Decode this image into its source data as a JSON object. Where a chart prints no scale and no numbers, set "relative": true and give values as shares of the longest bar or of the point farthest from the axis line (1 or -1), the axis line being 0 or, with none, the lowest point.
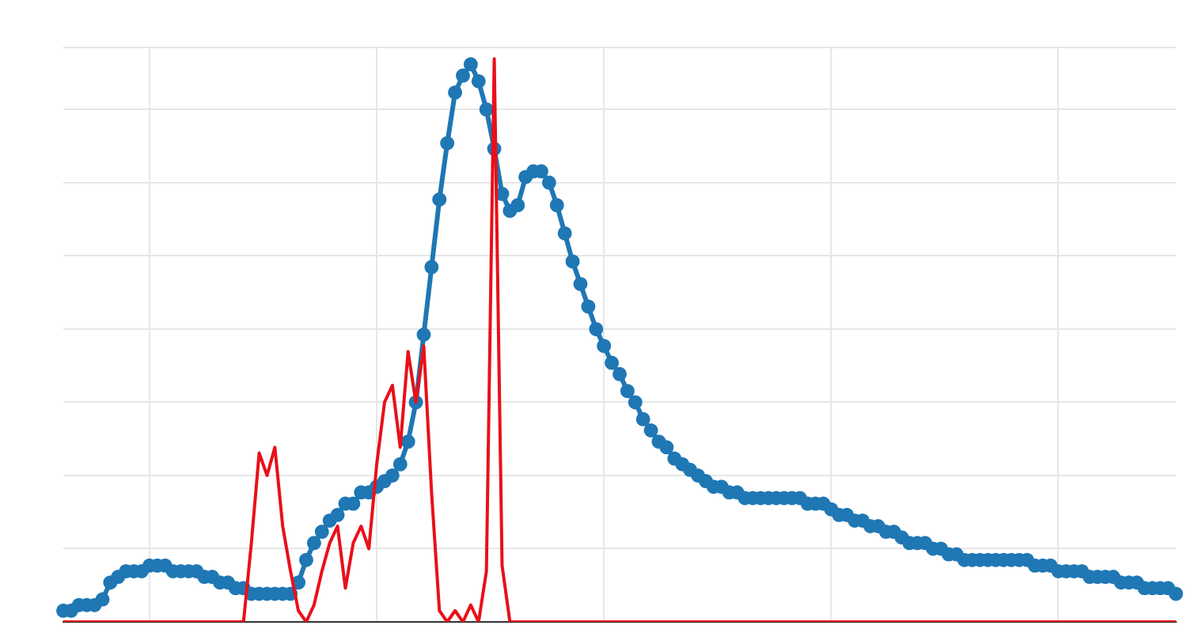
{
  "chart_data": {
    "type": "line",
    "relative": true,
    "grid": true,
    "categories": [
      null,
      null,
      null,
      null,
      null,
      null,
      null,
      null,
      null,
      null,
      null,
      null,
      null,
      null,
      null,
      null,
      null,
      null,
      null,
      null,
      null,
      null,
      null,
      null,
      null,
      null,
      null,
      null,
      null,
      null,
      null,
      null,
      null,
      null,
      null,
      null,
      null,
      null,
      null,
      null,
      null,
      null,
      null,
      null,
      null,
      null,
      null,
      null,
      null,
      null,
      null,
      null,
      null,
      null,
      null,
      null,
      null,
      null,
      null,
      null,
      null,
      null,
      null,
      null,
      null,
      null,
      null,
      null,
      null,
      null,
      null,
      null,
      null,
      null,
      null,
      null,
      null,
      null,
      null,
      null,
      null,
      null,
      null,
      null,
      null,
      null,
      null,
      null,
      null,
      null,
      null,
      null,
      null,
      null,
      null,
      null,
      null,
      null,
      null,
      null,
      null,
      null,
      null,
      null,
      null,
      null,
      null,
      null,
      null,
      null,
      null,
      null,
      null,
      null,
      null,
      null,
      null,
      null,
      null,
      null,
      null,
      null,
      null,
      null,
      null,
      null,
      null,
      null,
      null,
      null,
      null,
      null,
      null,
      null,
      null,
      null,
      null,
      null,
      null,
      null,
      null,
      null,
      null
    ],
    "series": [
      {
        "color": "#1f77b4",
        "marker": "circle",
        "values": [
          0.02,
          0.02,
          0.03,
          0.03,
          0.03,
          0.04,
          0.07,
          0.08,
          0.09,
          0.09,
          0.09,
          0.1,
          0.1,
          0.1,
          0.09,
          0.09,
          0.09,
          0.09,
          0.08,
          0.08,
          0.07,
          0.07,
          0.06,
          0.06,
          0.05,
          0.05,
          0.05,
          0.05,
          0.05,
          0.05,
          0.07,
          0.11,
          0.14,
          0.16,
          0.18,
          0.19,
          0.21,
          0.21,
          0.23,
          0.23,
          0.24,
          0.25,
          0.26,
          0.28,
          0.32,
          0.39,
          0.51,
          0.63,
          0.75,
          0.85,
          0.94,
          0.97,
          0.99,
          0.96,
          0.91,
          0.84,
          0.76,
          0.73,
          0.74,
          0.79,
          0.8,
          0.8,
          0.78,
          0.74,
          0.69,
          0.64,
          0.6,
          0.56,
          0.52,
          0.49,
          0.46,
          0.44,
          0.41,
          0.39,
          0.36,
          0.34,
          0.32,
          0.31,
          0.29,
          0.28,
          0.27,
          0.26,
          0.25,
          0.24,
          0.24,
          0.23,
          0.23,
          0.22,
          0.22,
          0.22,
          0.22,
          0.22,
          0.22,
          0.22,
          0.22,
          0.21,
          0.21,
          0.21,
          0.2,
          0.19,
          0.19,
          0.18,
          0.18,
          0.17,
          0.17,
          0.16,
          0.16,
          0.15,
          0.14,
          0.14,
          0.14,
          0.13,
          0.13,
          0.12,
          0.12,
          0.11,
          0.11,
          0.11,
          0.11,
          0.11,
          0.11,
          0.11,
          0.11,
          0.11,
          0.1,
          0.1,
          0.1,
          0.09,
          0.09,
          0.09,
          0.09,
          0.08,
          0.08,
          0.08,
          0.08,
          0.07,
          0.07,
          0.07,
          0.06,
          0.06,
          0.06,
          0.06,
          0.05
        ]
      },
      {
        "color": "#e8101a",
        "marker": "none",
        "values": [
          0,
          0,
          0,
          0,
          0,
          0,
          0,
          0,
          0,
          0,
          0,
          0,
          0,
          0,
          0,
          0,
          0,
          0,
          0,
          0,
          0,
          0,
          0,
          0,
          0.14,
          0.3,
          0.26,
          0.31,
          0.17,
          0.09,
          0.02,
          0,
          0.03,
          0.09,
          0.14,
          0.17,
          0.06,
          0.14,
          0.17,
          0.13,
          0.28,
          0.39,
          0.42,
          0.31,
          0.48,
          0.39,
          0.49,
          0.23,
          0.02,
          0,
          0.02,
          0,
          0.03,
          0,
          0.09,
          1,
          0.1,
          0,
          0,
          0,
          0,
          0,
          0,
          0,
          0,
          0,
          0,
          0,
          0,
          0,
          0,
          0,
          0,
          0,
          0,
          0,
          0,
          0,
          0,
          0,
          0,
          0,
          0,
          0,
          0,
          0,
          0,
          0,
          0,
          0,
          0,
          0,
          0,
          0,
          0,
          0,
          0,
          0,
          0,
          0,
          0,
          0,
          0,
          0,
          0,
          0,
          0,
          0,
          0,
          0,
          0,
          0,
          0,
          0,
          0,
          0,
          0,
          0,
          0,
          0,
          0,
          0,
          0,
          0,
          0,
          0,
          0,
          0,
          0,
          0,
          0,
          0,
          0,
          0,
          0,
          0,
          0,
          0,
          0,
          0,
          0,
          0,
          0
        ]
      }
    ]
  }
}
